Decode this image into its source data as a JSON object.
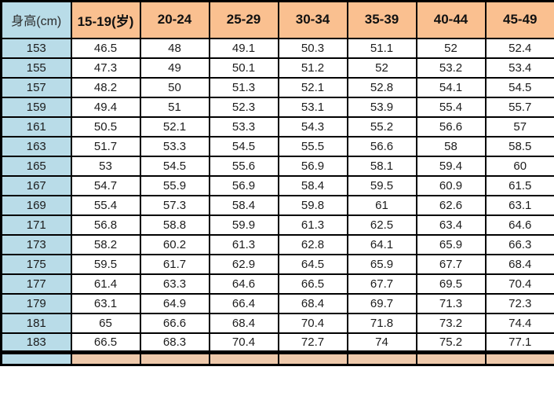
{
  "table": {
    "header": {
      "height_label": "身高(cm)",
      "age_columns": [
        "15-19(岁)",
        "20-24",
        "25-29",
        "30-34",
        "35-39",
        "40-44",
        "45-49"
      ]
    },
    "rows": [
      {
        "height": "153",
        "weights": [
          "46.5",
          "48",
          "49.1",
          "50.3",
          "51.1",
          "52",
          "52.4"
        ]
      },
      {
        "height": "155",
        "weights": [
          "47.3",
          "49",
          "50.1",
          "51.2",
          "52",
          "53.2",
          "53.4"
        ]
      },
      {
        "height": "157",
        "weights": [
          "48.2",
          "50",
          "51.3",
          "52.1",
          "52.8",
          "54.1",
          "54.5"
        ]
      },
      {
        "height": "159",
        "weights": [
          "49.4",
          "51",
          "52.3",
          "53.1",
          "53.9",
          "55.4",
          "55.7"
        ]
      },
      {
        "height": "161",
        "weights": [
          "50.5",
          "52.1",
          "53.3",
          "54.3",
          "55.2",
          "56.6",
          "57"
        ]
      },
      {
        "height": "163",
        "weights": [
          "51.7",
          "53.3",
          "54.5",
          "55.5",
          "56.6",
          "58",
          "58.5"
        ]
      },
      {
        "height": "165",
        "weights": [
          "53",
          "54.5",
          "55.6",
          "56.9",
          "58.1",
          "59.4",
          "60"
        ]
      },
      {
        "height": "167",
        "weights": [
          "54.7",
          "55.9",
          "56.9",
          "58.4",
          "59.5",
          "60.9",
          "61.5"
        ]
      },
      {
        "height": "169",
        "weights": [
          "55.4",
          "57.3",
          "58.4",
          "59.8",
          "61",
          "62.6",
          "63.1"
        ]
      },
      {
        "height": "171",
        "weights": [
          "56.8",
          "58.8",
          "59.9",
          "61.3",
          "62.5",
          "63.4",
          "64.6"
        ]
      },
      {
        "height": "173",
        "weights": [
          "58.2",
          "60.2",
          "61.3",
          "62.8",
          "64.1",
          "65.9",
          "66.3"
        ]
      },
      {
        "height": "175",
        "weights": [
          "59.5",
          "61.7",
          "62.9",
          "64.5",
          "65.9",
          "67.7",
          "68.4"
        ]
      },
      {
        "height": "177",
        "weights": [
          "61.4",
          "63.3",
          "64.6",
          "66.5",
          "67.7",
          "69.5",
          "70.4"
        ]
      },
      {
        "height": "179",
        "weights": [
          "63.1",
          "64.9",
          "66.4",
          "68.4",
          "69.7",
          "71.3",
          "72.3"
        ]
      },
      {
        "height": "181",
        "weights": [
          "65",
          "66.6",
          "68.4",
          "70.4",
          "71.8",
          "73.2",
          "74.4"
        ]
      },
      {
        "height": "183",
        "weights": [
          "66.5",
          "68.3",
          "70.4",
          "72.7",
          "74",
          "75.2",
          "77.1"
        ]
      }
    ],
    "partial_next_row_visible": true,
    "colors": {
      "header_peach": "#fac090",
      "height_blue": "#b9dce8",
      "partial_peach": "#eec9ab",
      "cell_white": "#ffffff",
      "border_black": "#000000"
    }
  }
}
